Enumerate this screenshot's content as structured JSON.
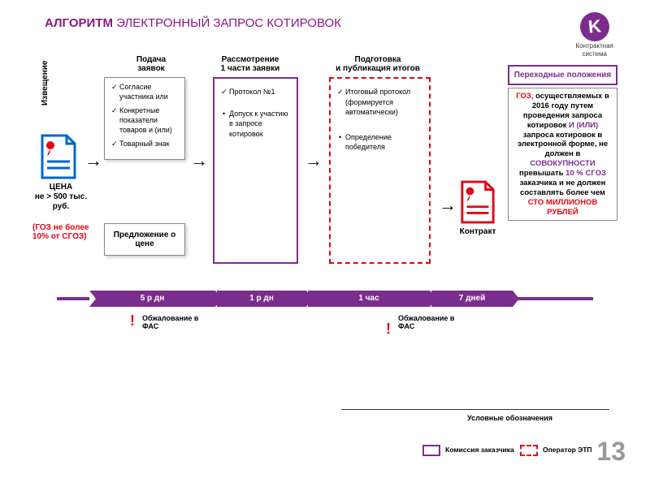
{
  "colors": {
    "purple": "#7b2d8e",
    "purple_dark": "#8b1688",
    "red": "#e30613",
    "blue": "#0066cc",
    "grey": "#888888",
    "page_grey": "#999999",
    "bg": "#ffffff"
  },
  "title": {
    "bold": "АЛГОРИТМ",
    "rest": "ЭЛЕКТРОННЫЙ ЗАПРОС КОТИРОВОК"
  },
  "logo": {
    "letter": "K",
    "line1": "Контрактная",
    "line2": "система"
  },
  "vertical_label": "Извещение",
  "stages": {
    "s1": "Подача\nзаявок",
    "s2": "Рассмотрение\n1 части заявки",
    "s3": "Подготовка\nи публикация итогов"
  },
  "price": {
    "line1": "ЦЕНА",
    "line2": "не > 500 тыс. руб."
  },
  "price_note": "(ГОЗ не более 10% от СГОЗ)",
  "box_apply": {
    "i1": "Согласие участника или",
    "i2": "Конкретные показатели товаров и (или)",
    "i3": "Товарный знак"
  },
  "box_offer": "Предложение о цене",
  "box_review": {
    "i1": "Протокол №1",
    "i2": "Допуск к участию в запросе котировок"
  },
  "box_results": {
    "i1": "Итоговый протокол (формируется автоматически)",
    "i2": "Определение победителя"
  },
  "contract_label": "Контракт",
  "transitional_title": "Переходные положения",
  "transitional_body": {
    "t1": "ГОЗ,",
    "t2": "осуществляемых в 2016 году путем проведения запроса котировок ",
    "t3": "И (ИЛИ)",
    "t4": " запроса котировок в электронной форме, не должен в ",
    "t5": "СОВОКУПНОСТИ",
    "t6": " превышать ",
    "t7": "10 % СГОЗ",
    "t8": " заказчика и не должен составлять более чем ",
    "t9": "СТО МИЛЛИОНОВ РУБЛЕЙ"
  },
  "timeline": {
    "seg1": "5 р дн",
    "seg2": "1 р дн",
    "seg3": "1 час",
    "seg4": "7 дней",
    "widths": [
      155,
      110,
      150,
      100
    ]
  },
  "appeal": "Обжалование в ФАС",
  "legend": {
    "title": "Условные обозначения",
    "item1": "Комиссия заказчика",
    "item2": "Оператор ЭТП"
  },
  "page_number": "13"
}
